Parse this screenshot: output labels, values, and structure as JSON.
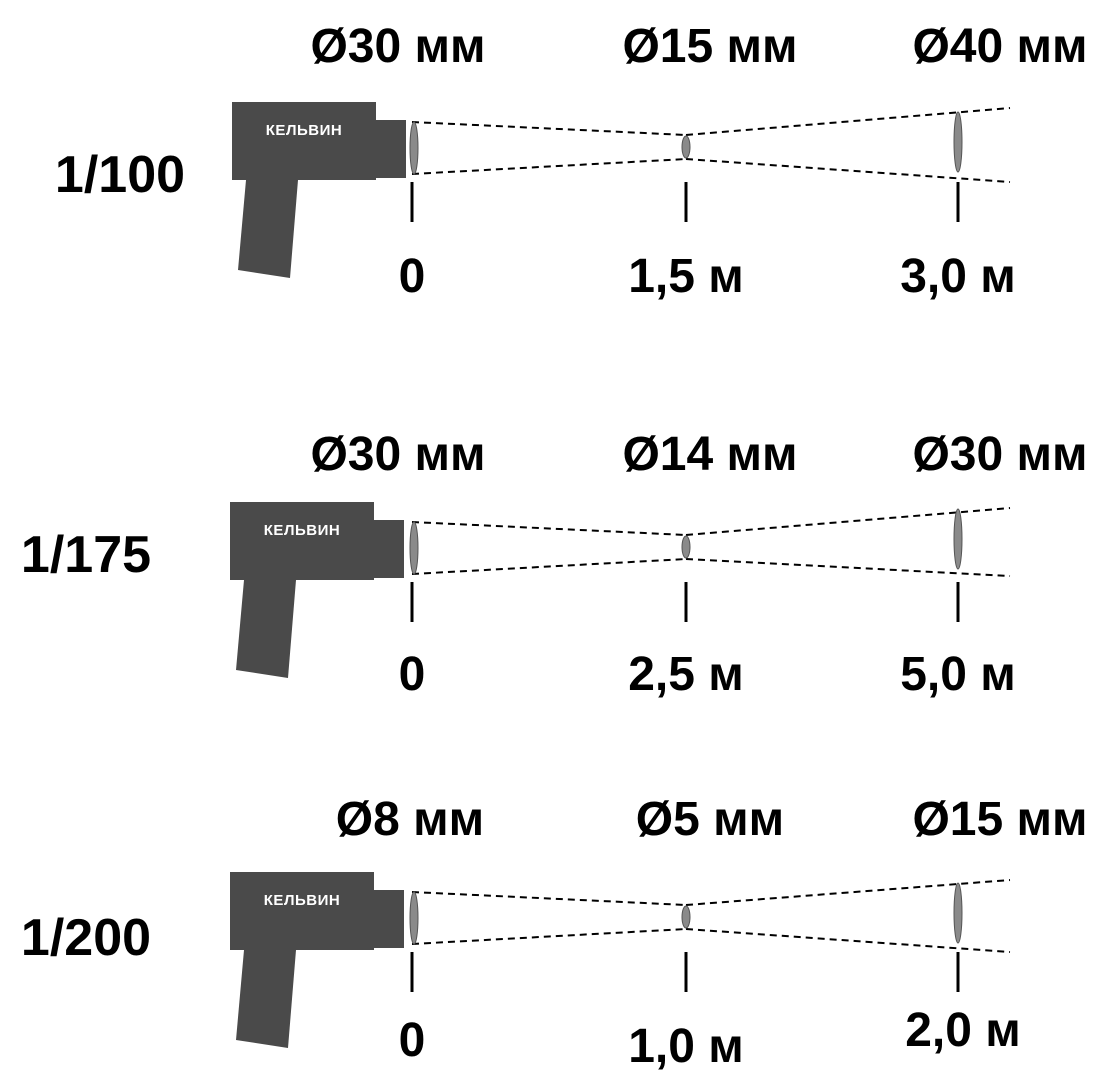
{
  "brand_label": "КЕЛЬВИН",
  "colors": {
    "device_body": "#4a4a4a",
    "device_text": "#ffffff",
    "beam_line": "#000000",
    "spot_fill": "#8a8a8a",
    "text": "#000000"
  },
  "rows": [
    {
      "ratio": "1/100",
      "diameters": [
        "Ø30 мм",
        "Ø15 мм",
        "Ø40 мм"
      ],
      "distances": [
        "0",
        "1,5 м",
        "3,0 м"
      ]
    },
    {
      "ratio": "1/175",
      "diameters": [
        "Ø30 мм",
        "Ø14 мм",
        "Ø30 мм"
      ],
      "distances": [
        "0",
        "2,5 м",
        "5,0 м"
      ]
    },
    {
      "ratio": "1/200",
      "diameters": [
        "Ø8 мм",
        "Ø5 мм",
        "Ø15 мм"
      ],
      "distances": [
        "0",
        "1,0 м",
        "2,0 м"
      ]
    }
  ]
}
